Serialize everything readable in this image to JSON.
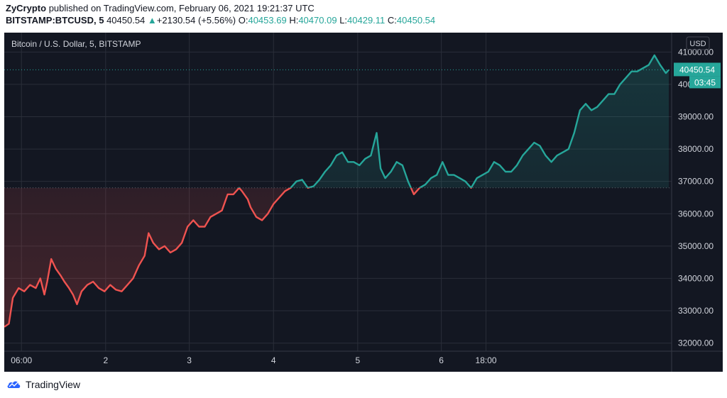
{
  "header": {
    "author": "ZyCrypto",
    "published_text": "published on TradingView.com, February 06, 2021 19:21:37 UTC",
    "symbol": "BITSTAMP:BTCUSD, 5",
    "last": "40450.54",
    "change_arrow": "▲",
    "change": "+2130.54 (+5.56%)",
    "o_label": "O:",
    "o_value": "40453.69",
    "h_label": "H:",
    "h_value": "40470.09",
    "l_label": "L:",
    "l_value": "40429.11",
    "c_label": "C:",
    "c_value": "40450.54"
  },
  "colors": {
    "background": "#131722",
    "up": "#26a69a",
    "down": "#ef5350",
    "grid": "#2a2e39",
    "text": "#d1d4dc"
  },
  "chart_data": {
    "type": "line",
    "title": "Bitcoin / U.S. Dollar, 5, BITSTAMP",
    "currency": "USD",
    "baseline": 36800,
    "ylim": [
      31750,
      41600
    ],
    "grid": true,
    "y_ticks": [
      "41000.00",
      "40000.00",
      "39000.00",
      "38000.00",
      "37000.00",
      "36000.00",
      "35000.00",
      "34000.00",
      "33000.00",
      "32000.00"
    ],
    "x_ticks": [
      "06:00",
      "2",
      "3",
      "4",
      "5",
      "6",
      "18:00"
    ],
    "price_label": "40450.54",
    "countdown_label": "03:45",
    "series": [
      {
        "values": [
          [
            0,
            32500
          ],
          [
            0.8,
            32600
          ],
          [
            1.5,
            33400
          ],
          [
            2.5,
            33700
          ],
          [
            3.5,
            33600
          ],
          [
            4.5,
            33800
          ],
          [
            5.5,
            33700
          ],
          [
            6.3,
            34000
          ],
          [
            7,
            33500
          ],
          [
            7.5,
            33900
          ],
          [
            8.2,
            34600
          ],
          [
            9,
            34300
          ],
          [
            9.8,
            34100
          ],
          [
            10.5,
            33900
          ],
          [
            11.3,
            33700
          ],
          [
            12,
            33500
          ],
          [
            12.7,
            33200
          ],
          [
            13.5,
            33600
          ],
          [
            14.5,
            33800
          ],
          [
            15.5,
            33900
          ],
          [
            16.5,
            33700
          ],
          [
            17.5,
            33600
          ],
          [
            18.5,
            33800
          ],
          [
            19.5,
            33650
          ],
          [
            20.5,
            33600
          ],
          [
            21.5,
            33800
          ],
          [
            22.5,
            34000
          ],
          [
            23.5,
            34400
          ],
          [
            24.5,
            34700
          ],
          [
            25.2,
            35400
          ],
          [
            26,
            35100
          ],
          [
            27,
            34900
          ],
          [
            28,
            35000
          ],
          [
            29,
            34800
          ],
          [
            30,
            34900
          ],
          [
            31,
            35100
          ],
          [
            32,
            35600
          ],
          [
            33,
            35800
          ],
          [
            34,
            35600
          ],
          [
            35,
            35600
          ],
          [
            36,
            35900
          ],
          [
            37,
            36000
          ],
          [
            38,
            36100
          ],
          [
            39,
            36600
          ],
          [
            40,
            36600
          ],
          [
            41,
            36800
          ],
          [
            41.5,
            36700
          ],
          [
            42.5,
            36450
          ],
          [
            43,
            36200
          ],
          [
            44,
            35900
          ],
          [
            45,
            35800
          ],
          [
            46,
            36000
          ],
          [
            47,
            36300
          ],
          [
            48,
            36500
          ],
          [
            49,
            36700
          ],
          [
            50,
            36800
          ],
          [
            51,
            37000
          ],
          [
            52,
            37050
          ],
          [
            53,
            36800
          ],
          [
            54,
            36850
          ],
          [
            55,
            37050
          ],
          [
            56,
            37300
          ],
          [
            57,
            37500
          ],
          [
            58,
            37800
          ],
          [
            59,
            37900
          ],
          [
            60,
            37600
          ],
          [
            61,
            37600
          ],
          [
            62,
            37500
          ],
          [
            63,
            37700
          ],
          [
            64,
            37800
          ],
          [
            65,
            38500
          ],
          [
            65.7,
            37400
          ],
          [
            66.5,
            37100
          ],
          [
            67.5,
            37300
          ],
          [
            68.5,
            37600
          ],
          [
            69.5,
            37500
          ],
          [
            70.5,
            37000
          ],
          [
            71.5,
            36600
          ],
          [
            72.5,
            36800
          ],
          [
            73.5,
            36900
          ],
          [
            74.5,
            37100
          ],
          [
            75.5,
            37200
          ],
          [
            76.5,
            37600
          ],
          [
            77.5,
            37200
          ],
          [
            78.5,
            37200
          ],
          [
            79.5,
            37100
          ],
          [
            80.5,
            37000
          ],
          [
            81.5,
            36800
          ],
          [
            82.5,
            37100
          ],
          [
            83.5,
            37200
          ],
          [
            84.5,
            37300
          ],
          [
            85.5,
            37600
          ],
          [
            86.5,
            37500
          ],
          [
            87.5,
            37300
          ],
          [
            88.5,
            37300
          ],
          [
            89.5,
            37500
          ],
          [
            90.5,
            37800
          ],
          [
            91.5,
            38000
          ],
          [
            92.5,
            38200
          ],
          [
            93.5,
            38100
          ],
          [
            94.5,
            37800
          ],
          [
            95.5,
            37600
          ],
          [
            96.5,
            37800
          ],
          [
            97.5,
            37900
          ],
          [
            98.5,
            38000
          ],
          [
            99.5,
            38500
          ],
          [
            100.5,
            39200
          ],
          [
            101.5,
            39400
          ],
          [
            102.5,
            39200
          ],
          [
            103.5,
            39300
          ],
          [
            104.5,
            39500
          ],
          [
            105.5,
            39700
          ],
          [
            106.5,
            39700
          ],
          [
            107.5,
            40000
          ],
          [
            108.5,
            40200
          ],
          [
            109.5,
            40400
          ],
          [
            110.5,
            40400
          ],
          [
            111.5,
            40500
          ],
          [
            112.5,
            40600
          ],
          [
            113.5,
            40900
          ],
          [
            114.5,
            40600
          ],
          [
            115.5,
            40350
          ],
          [
            116,
            40450
          ]
        ]
      }
    ]
  },
  "footer": {
    "brand": "TradingView"
  }
}
